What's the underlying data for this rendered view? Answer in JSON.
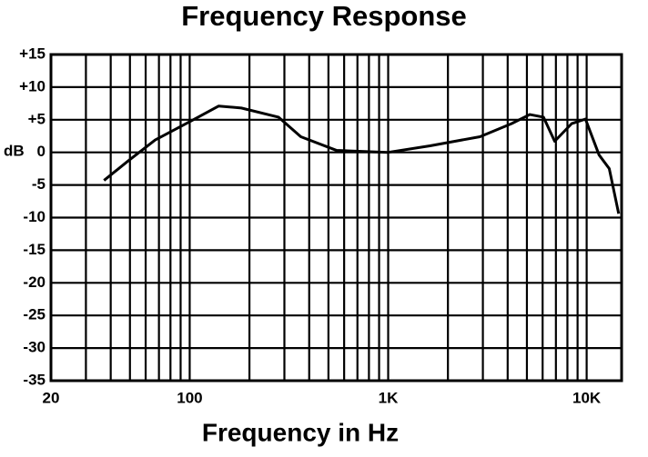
{
  "chart_data": {
    "type": "line",
    "title": "Frequency Response",
    "x_label": "Frequency in Hz",
    "y_label": "dB",
    "x_scale": "log",
    "grid": true,
    "xlim": [
      20,
      15000
    ],
    "ylim": [
      -35,
      15
    ],
    "xticks": [
      20,
      100,
      {
        "value": 1000,
        "label": "1K"
      },
      {
        "value": 10000,
        "label": "10K"
      }
    ],
    "xgrid": [
      20,
      30,
      40,
      50,
      60,
      70,
      80,
      90,
      100,
      200,
      300,
      400,
      500,
      600,
      700,
      800,
      900,
      1000,
      2000,
      3000,
      4000,
      5000,
      6000,
      7000,
      8000,
      9000,
      10000
    ],
    "yticks": [
      {
        "value": 15,
        "label": "+15"
      },
      {
        "value": 10,
        "label": "+10"
      },
      {
        "value": 5,
        "label": "+5"
      },
      0,
      -5,
      -10,
      -15,
      -20,
      -25,
      -30,
      -35
    ],
    "x": [
      37,
      49,
      67,
      100,
      140,
      182,
      280,
      363,
      550,
      1000,
      1625,
      2900,
      4180,
      5170,
      6060,
      6900,
      8400,
      9860,
      11550,
      13000,
      14500
    ],
    "series": [
      {
        "color": "#000000",
        "values": [
          -4.3,
          -1.3,
          1.9,
          4.7,
          7.1,
          6.8,
          5.4,
          2.4,
          0.3,
          0,
          1,
          2.4,
          4.4,
          5.8,
          5.4,
          1.7,
          4.4,
          5.1,
          -0.4,
          -2.5,
          -9.4
        ]
      }
    ]
  }
}
